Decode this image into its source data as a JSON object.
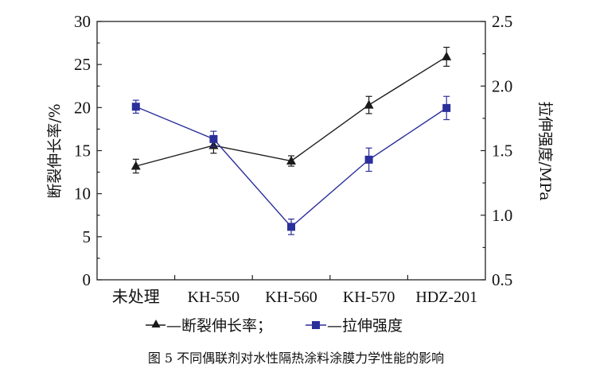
{
  "chart_data": {
    "type": "line",
    "categories": [
      "未处理",
      "KH-550",
      "KH-560",
      "KH-570",
      "HDZ-201"
    ],
    "series": [
      {
        "name": "断裂伸长率",
        "axis": "left",
        "marker": "triangle",
        "color": "#1a1a1a",
        "values": [
          13.2,
          15.6,
          13.8,
          20.3,
          25.9
        ],
        "errors": [
          0.8,
          0.9,
          0.6,
          1.0,
          1.1
        ]
      },
      {
        "name": "拉伸强度",
        "axis": "right",
        "marker": "square",
        "color": "#2b2f9a",
        "values": [
          1.84,
          1.59,
          0.91,
          1.43,
          1.83
        ],
        "errors": [
          0.05,
          0.06,
          0.06,
          0.09,
          0.09
        ]
      }
    ],
    "ylabel_left": "断裂伸长率/%",
    "ylabel_right": "拉伸强度/MPa",
    "ylim_left": [
      0,
      30
    ],
    "ylim_right": [
      0.5,
      2.5
    ],
    "yticks_left": [
      "0",
      "5",
      "10",
      "15",
      "20",
      "25",
      "30"
    ],
    "yticks_right": [
      "0.5",
      "1.0",
      "1.5",
      "2.0",
      "2.5"
    ],
    "legend_position": "bottom",
    "legend_entries": [
      "—断裂伸长率；",
      "—拉伸强度"
    ],
    "grid": false
  },
  "caption": "图 5  不同偶联剂对水性隔热涂料涂膜力学性能的影响"
}
